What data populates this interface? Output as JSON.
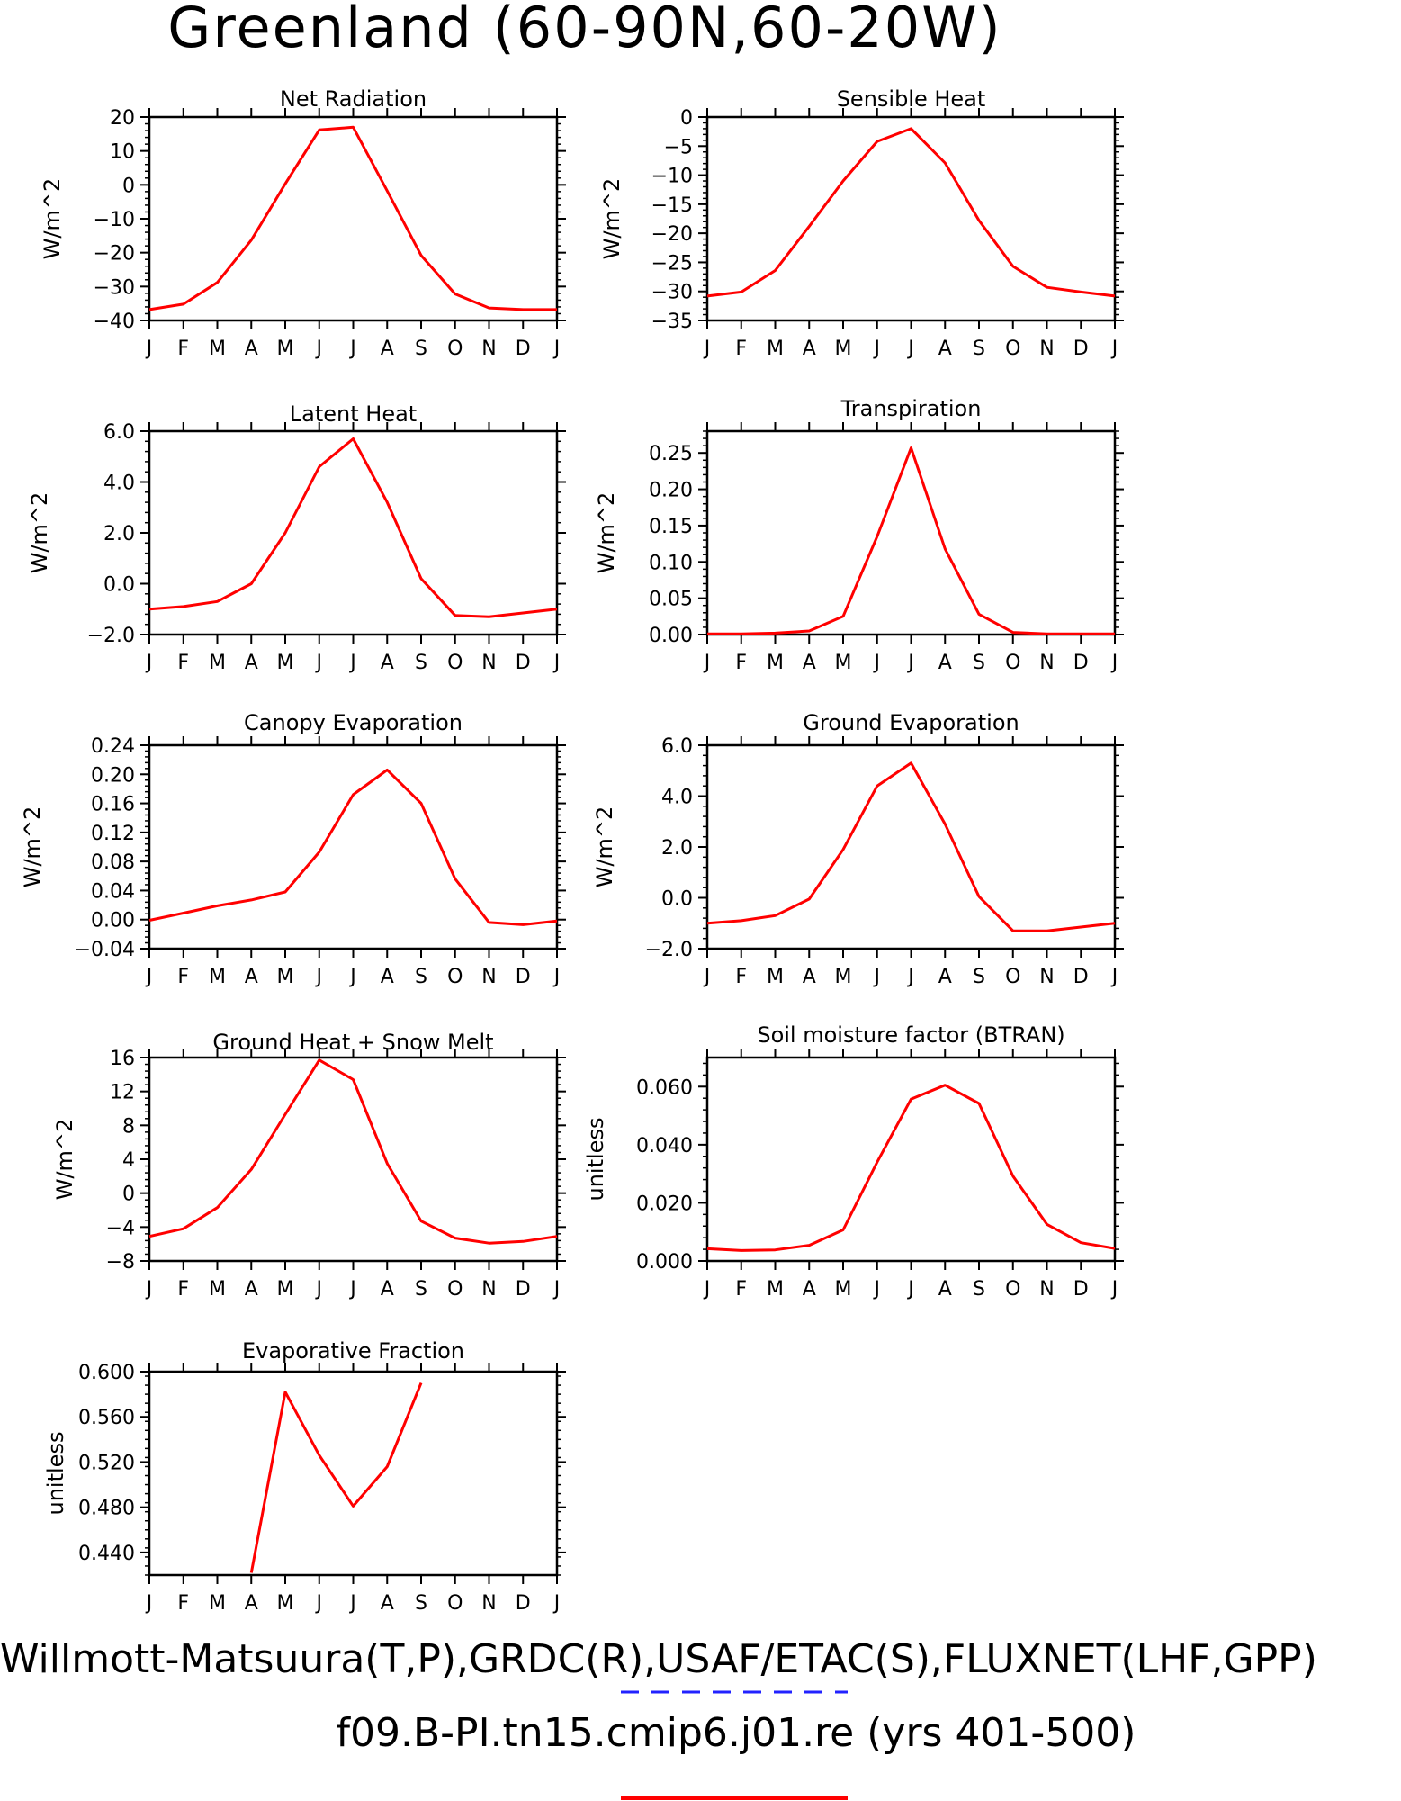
{
  "title": "Greenland (60-90N,60-20W)",
  "footer": {
    "line1": "Willmott-Matsuura(T,P),GRDC(R),USAF/ETAC(S),FLUXNET(LHF,GPP)",
    "line2": "f09.B-PI.tn15.cmip6.j01.re (yrs 401-500)"
  },
  "colors": {
    "series": "#ff0000",
    "legend_dash": "#2222ff",
    "axes": "#000000"
  },
  "chart_data": [
    {
      "type": "line",
      "title": "Net Radiation",
      "ylabel": "W/m^2",
      "categories": [
        "J",
        "F",
        "M",
        "A",
        "M",
        "J",
        "J",
        "A",
        "S",
        "O",
        "N",
        "D",
        "J"
      ],
      "ylim": [
        -40,
        20
      ],
      "yticks": [
        20,
        10,
        0,
        -10,
        -20,
        -30,
        -40
      ],
      "ytick_labels": [
        "20",
        "10",
        "0",
        "−10",
        "−20",
        "−30",
        "−40"
      ],
      "values": [
        -36.8,
        -35.2,
        -28.8,
        -16.3,
        0.3,
        16.2,
        17.0,
        -1.8,
        -20.8,
        -32.2,
        -36.3,
        -36.8,
        -36.8
      ]
    },
    {
      "type": "line",
      "title": "Sensible Heat",
      "ylabel": "W/m^2",
      "categories": [
        "J",
        "F",
        "M",
        "A",
        "M",
        "J",
        "J",
        "A",
        "S",
        "O",
        "N",
        "D",
        "J"
      ],
      "ylim": [
        -35,
        0
      ],
      "yticks": [
        0,
        -5,
        -10,
        -15,
        -20,
        -25,
        -30,
        -35
      ],
      "ytick_labels": [
        "0",
        "−5",
        "−10",
        "−15",
        "−20",
        "−25",
        "−30",
        "−35"
      ],
      "values": [
        -30.8,
        -30.1,
        -26.4,
        -18.8,
        -11.0,
        -4.2,
        -2.0,
        -7.9,
        -17.8,
        -25.7,
        -29.3,
        -30.1,
        -30.8
      ]
    },
    {
      "type": "line",
      "title": "Latent Heat",
      "ylabel": "W/m^2",
      "categories": [
        "J",
        "F",
        "M",
        "A",
        "M",
        "J",
        "J",
        "A",
        "S",
        "O",
        "N",
        "D",
        "J"
      ],
      "ylim": [
        -2.0,
        6.0
      ],
      "yticks": [
        6.0,
        4.0,
        2.0,
        0.0,
        -2.0
      ],
      "ytick_labels": [
        "6.0",
        "4.0",
        "2.0",
        "0.0",
        "−2.0"
      ],
      "values": [
        -1.0,
        -0.9,
        -0.7,
        0.0,
        2.0,
        4.6,
        5.7,
        3.2,
        0.2,
        -1.25,
        -1.3,
        -1.15,
        -1.0
      ]
    },
    {
      "type": "line",
      "title": "Transpiration",
      "ylabel": "W/m^2",
      "categories": [
        "J",
        "F",
        "M",
        "A",
        "M",
        "J",
        "J",
        "A",
        "S",
        "O",
        "N",
        "D",
        "J"
      ],
      "ylim": [
        0,
        0.28
      ],
      "yticks": [
        0.25,
        0.2,
        0.15,
        0.1,
        0.05,
        0.0
      ],
      "ytick_labels": [
        "0.25",
        "0.20",
        "0.15",
        "0.10",
        "0.05",
        "0.00"
      ],
      "values": [
        0.001,
        0.001,
        0.002,
        0.005,
        0.025,
        0.135,
        0.257,
        0.118,
        0.028,
        0.003,
        0.001,
        0.001,
        0.001
      ]
    },
    {
      "type": "line",
      "title": "Canopy Evaporation",
      "ylabel": "W/m^2",
      "categories": [
        "J",
        "F",
        "M",
        "A",
        "M",
        "J",
        "J",
        "A",
        "S",
        "O",
        "N",
        "D",
        "J"
      ],
      "ylim": [
        -0.04,
        0.24
      ],
      "yticks": [
        0.24,
        0.2,
        0.16,
        0.12,
        0.08,
        0.04,
        0.0,
        -0.04
      ],
      "ytick_labels": [
        "0.24",
        "0.20",
        "0.16",
        "0.12",
        "0.08",
        "0.04",
        "0.00",
        "−0.04"
      ],
      "values": [
        -0.001,
        0.009,
        0.019,
        0.027,
        0.038,
        0.093,
        0.172,
        0.206,
        0.16,
        0.056,
        -0.004,
        -0.007,
        -0.002
      ]
    },
    {
      "type": "line",
      "title": "Ground Evaporation",
      "ylabel": "W/m^2",
      "categories": [
        "J",
        "F",
        "M",
        "A",
        "M",
        "J",
        "J",
        "A",
        "S",
        "O",
        "N",
        "D",
        "J"
      ],
      "ylim": [
        -2.0,
        6.0
      ],
      "yticks": [
        6.0,
        4.0,
        2.0,
        0.0,
        -2.0
      ],
      "ytick_labels": [
        "6.0",
        "4.0",
        "2.0",
        "0.0",
        "−2.0"
      ],
      "values": [
        -1.0,
        -0.9,
        -0.7,
        -0.05,
        1.9,
        4.4,
        5.3,
        2.9,
        0.05,
        -1.3,
        -1.3,
        -1.15,
        -1.0
      ]
    },
    {
      "type": "line",
      "title": "Ground Heat + Snow Melt",
      "ylabel": "W/m^2",
      "categories": [
        "J",
        "F",
        "M",
        "A",
        "M",
        "J",
        "J",
        "A",
        "S",
        "O",
        "N",
        "D",
        "J"
      ],
      "ylim": [
        -8,
        16
      ],
      "yticks": [
        16,
        12,
        8,
        4,
        0,
        -4,
        -8
      ],
      "ytick_labels": [
        "16",
        "12",
        "8",
        "4",
        "0",
        "−4",
        "−8"
      ],
      "values": [
        -5.1,
        -4.2,
        -1.7,
        2.8,
        9.3,
        15.7,
        13.4,
        3.5,
        -3.3,
        -5.3,
        -5.9,
        -5.7,
        -5.1
      ]
    },
    {
      "type": "line",
      "title": "Soil moisture factor (BTRAN)",
      "ylabel": "unitless",
      "categories": [
        "J",
        "F",
        "M",
        "A",
        "M",
        "J",
        "J",
        "A",
        "S",
        "O",
        "N",
        "D",
        "J"
      ],
      "ylim": [
        0,
        0.07
      ],
      "yticks": [
        0.06,
        0.04,
        0.02,
        0.0
      ],
      "ytick_labels": [
        "0.060",
        "0.040",
        "0.020",
        "0.000"
      ],
      "values": [
        0.0042,
        0.0036,
        0.0038,
        0.0054,
        0.0107,
        0.034,
        0.0557,
        0.0605,
        0.0542,
        0.0292,
        0.0126,
        0.0063,
        0.0043
      ]
    },
    {
      "type": "line",
      "title": "Evaporative Fraction",
      "ylabel": "unitless",
      "categories": [
        "J",
        "F",
        "M",
        "A",
        "M",
        "J",
        "J",
        "A",
        "S",
        "O",
        "N",
        "D",
        "J"
      ],
      "ylim": [
        0.42,
        0.6
      ],
      "yticks": [
        0.6,
        0.56,
        0.52,
        0.48,
        0.44
      ],
      "ytick_labels": [
        "0.600",
        "0.560",
        "0.520",
        "0.480",
        "0.440"
      ],
      "values": [
        null,
        null,
        null,
        0.422,
        0.582,
        0.526,
        0.481,
        0.516,
        0.59,
        null,
        null,
        null,
        null
      ]
    }
  ]
}
